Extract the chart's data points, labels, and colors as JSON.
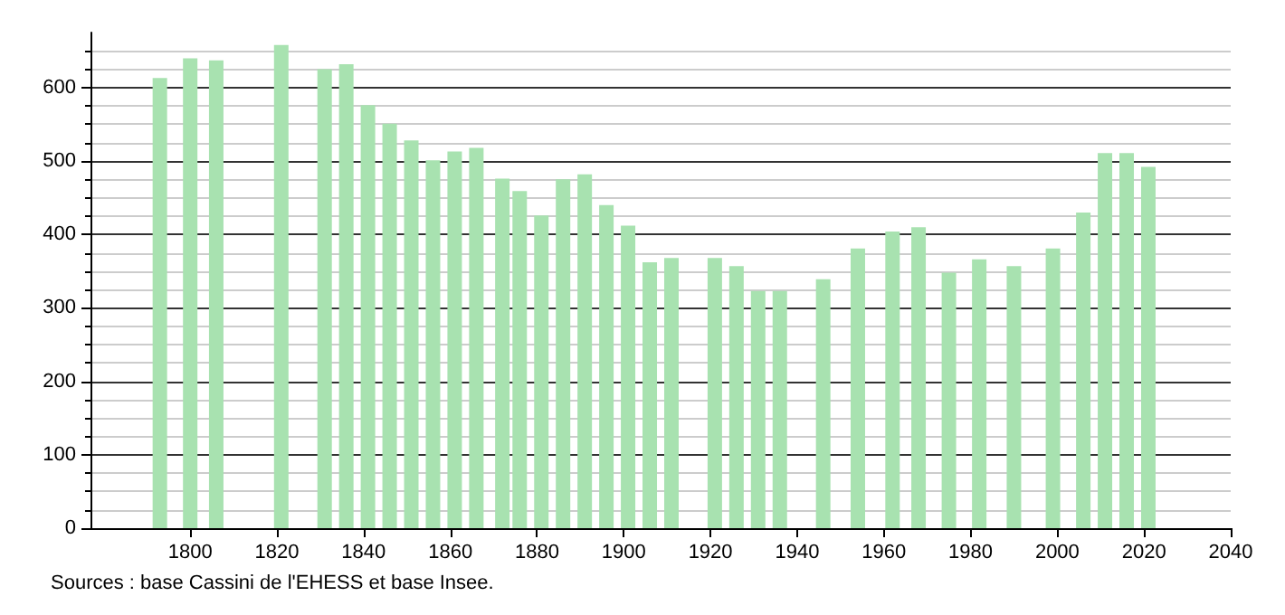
{
  "chart_data": {
    "type": "bar",
    "x": [
      1793,
      1800,
      1806,
      1821,
      1831,
      1836,
      1841,
      1846,
      1851,
      1856,
      1861,
      1866,
      1872,
      1876,
      1881,
      1886,
      1891,
      1896,
      1901,
      1906,
      1911,
      1921,
      1926,
      1931,
      1936,
      1946,
      1954,
      1962,
      1968,
      1975,
      1982,
      1990,
      1999,
      2006,
      2011,
      2016,
      2021
    ],
    "values": [
      613,
      640,
      637,
      658,
      625,
      632,
      576,
      551,
      528,
      501,
      513,
      518,
      476,
      459,
      426,
      475,
      482,
      440,
      412,
      362,
      368,
      368,
      357,
      323,
      323,
      339,
      381,
      404,
      410,
      348,
      366,
      357,
      381,
      430,
      511,
      511,
      492
    ],
    "color": "#a8e2b0",
    "xlim": [
      1777,
      2040
    ],
    "xticks": [
      1800,
      1820,
      1840,
      1860,
      1880,
      1900,
      1920,
      1940,
      1960,
      1980,
      2000,
      2020,
      2040
    ],
    "ylim": [
      0,
      675
    ],
    "yticks": [
      0,
      100,
      200,
      300,
      400,
      500,
      600
    ],
    "grid": "y",
    "annotations": [
      "Sources : base Cassini de l'EHESS et base Insee."
    ]
  }
}
